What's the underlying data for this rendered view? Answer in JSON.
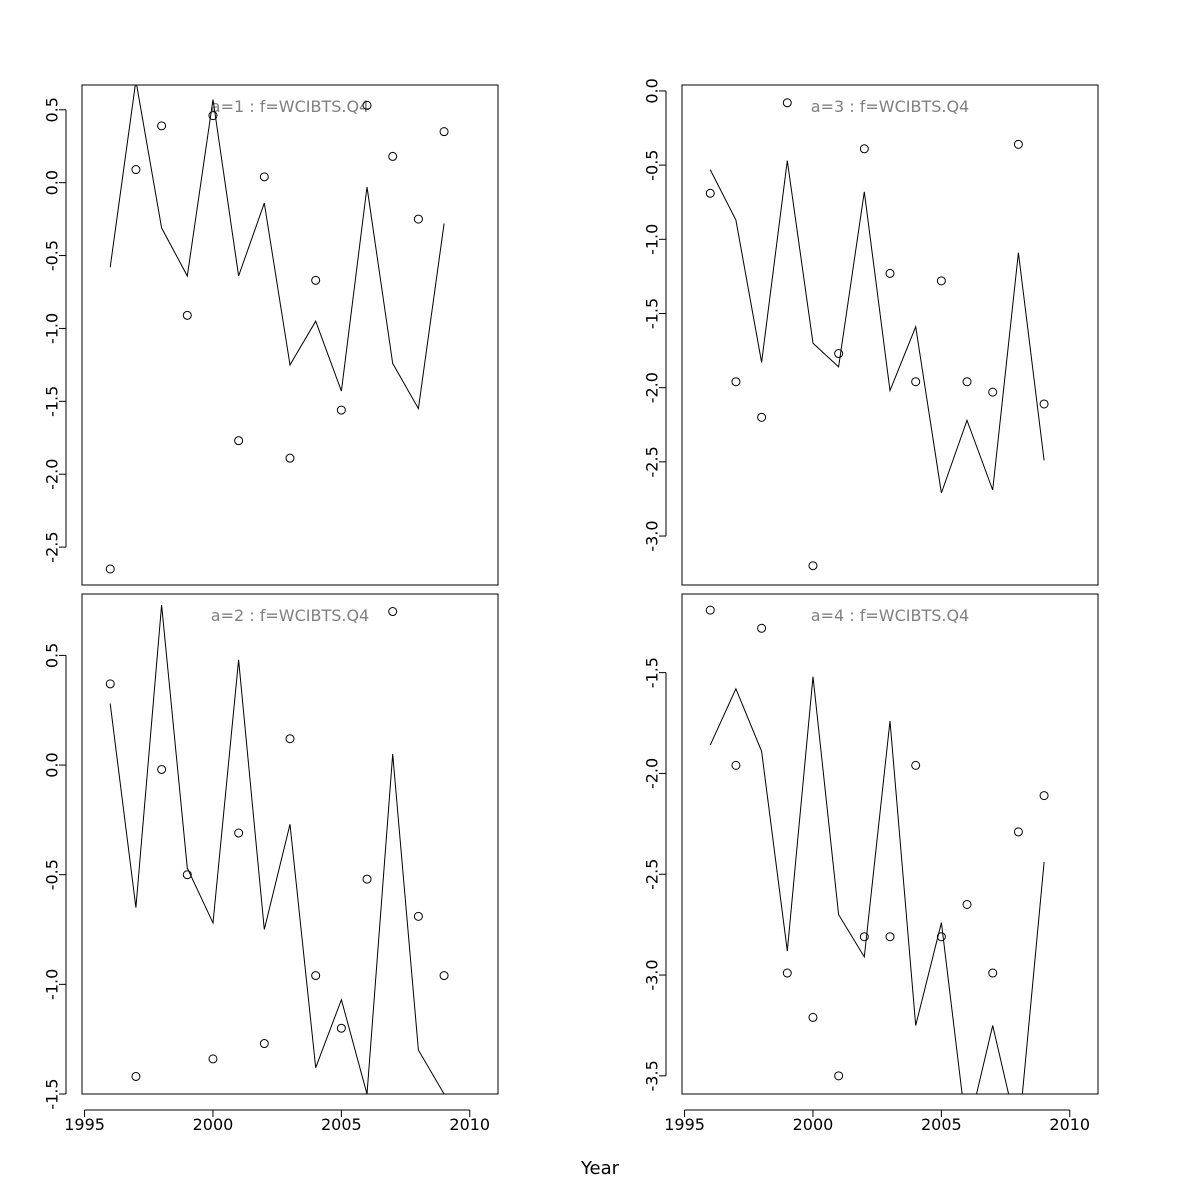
{
  "xlabel": "Year",
  "chart_data": [
    {
      "type": "line",
      "title": "a=1  :  f=WCIBTS.Q4",
      "x": [
        1996,
        1997,
        1998,
        1999,
        2000,
        2001,
        2002,
        2003,
        2004,
        2005,
        2006,
        2007,
        2008,
        2009
      ],
      "series": [
        {
          "kind": "line",
          "values": [
            -0.58,
            0.7,
            -0.31,
            -0.64,
            0.57,
            -0.64,
            -0.14,
            -1.25,
            -0.95,
            -1.43,
            -0.03,
            -1.24,
            -1.55,
            -0.28
          ]
        },
        {
          "kind": "points",
          "values": [
            -2.65,
            0.09,
            0.39,
            -0.91,
            0.46,
            -1.77,
            0.04,
            -1.89,
            -0.67,
            -1.56,
            0.53,
            0.18,
            -0.25,
            0.35
          ]
        }
      ],
      "xlim": [
        1994.9,
        2011.1
      ],
      "ylim": [
        -2.76,
        0.67
      ],
      "yticks": [
        -2.5,
        -2.0,
        -1.5,
        -1.0,
        -0.5,
        0.0,
        0.5
      ],
      "ytick_labels": [
        "-2.5",
        "-2.0",
        "-1.5",
        "-1.0",
        "-0.5",
        "0.0",
        "0.5"
      ]
    },
    {
      "type": "line",
      "title": "a=3  :  f=WCIBTS.Q4",
      "x": [
        1996,
        1997,
        1998,
        1999,
        2000,
        2001,
        2002,
        2003,
        2004,
        2005,
        2006,
        2007,
        2008,
        2009
      ],
      "series": [
        {
          "kind": "line",
          "values": [
            -0.53,
            -0.87,
            -1.83,
            -0.47,
            -1.7,
            -1.86,
            -0.68,
            -2.02,
            -1.59,
            -2.71,
            -2.22,
            -2.69,
            -1.09,
            -2.49
          ]
        },
        {
          "kind": "points",
          "values": [
            -0.69,
            -1.96,
            -2.2,
            -0.08,
            -3.2,
            -1.77,
            -0.39,
            -1.23,
            -1.96,
            -1.28,
            -1.96,
            -2.03,
            -0.36,
            -2.11
          ]
        }
      ],
      "xlim": [
        1994.9,
        2011.1
      ],
      "ylim": [
        -3.33,
        0.04
      ],
      "yticks": [
        -3.0,
        -2.5,
        -2.0,
        -1.5,
        -1.0,
        -0.5,
        0.0
      ],
      "ytick_labels": [
        "-3.0",
        "-2.5",
        "-2.0",
        "-1.5",
        "-1.0",
        "-0.5",
        "0.0"
      ]
    },
    {
      "type": "line",
      "title": "a=2  :  f=WCIBTS.Q4",
      "x": [
        1996,
        1997,
        1998,
        1999,
        2000,
        2001,
        2002,
        2003,
        2004,
        2005,
        2006,
        2007,
        2008,
        2009
      ],
      "series": [
        {
          "kind": "line",
          "values": [
            0.28,
            -0.65,
            0.73,
            -0.47,
            -0.72,
            0.48,
            -0.75,
            -0.27,
            -1.38,
            -1.07,
            -1.5,
            0.05,
            -1.3,
            -1.5
          ]
        },
        {
          "kind": "points",
          "values": [
            0.37,
            -1.42,
            -0.02,
            -0.5,
            -1.34,
            -0.31,
            -1.27,
            0.12,
            -0.96,
            -1.2,
            -0.52,
            0.7,
            -0.69,
            -0.96
          ]
        }
      ],
      "xlim": [
        1994.9,
        2011.1
      ],
      "ylim": [
        -1.5,
        0.78
      ],
      "yticks": [
        -1.5,
        -1.0,
        -0.5,
        0.0,
        0.5
      ],
      "ytick_labels": [
        "-1.5",
        "-1.0",
        "-0.5",
        "0.0",
        "0.5"
      ]
    },
    {
      "type": "line",
      "title": "a=4  :  f=WCIBTS.Q4",
      "x": [
        1996,
        1997,
        1998,
        1999,
        2000,
        2001,
        2002,
        2003,
        2004,
        2005,
        2006,
        2007,
        2008,
        2009
      ],
      "series": [
        {
          "kind": "line",
          "values": [
            -1.86,
            -1.58,
            -1.89,
            -2.88,
            -1.52,
            -2.7,
            -2.91,
            -1.74,
            -3.25,
            -2.74,
            -3.79,
            -3.25,
            -3.8,
            -2.44
          ]
        },
        {
          "kind": "points",
          "values": [
            -1.19,
            -1.96,
            -1.28,
            -2.99,
            -3.21,
            -3.5,
            -2.81,
            -2.81,
            -1.96,
            -2.81,
            -2.65,
            -2.99,
            -2.29,
            -2.11
          ]
        }
      ],
      "xlim": [
        1994.9,
        2011.1
      ],
      "ylim": [
        -3.59,
        -1.11
      ],
      "yticks": [
        -3.5,
        -3.0,
        -2.5,
        -2.0,
        -1.5
      ],
      "ytick_labels": [
        "-3.5",
        "-3.0",
        "-2.5",
        "-2.0",
        "-1.5"
      ]
    }
  ],
  "xticks": [
    1995,
    2000,
    2005,
    2010
  ],
  "xtick_labels": [
    "1995",
    "2000",
    "2005",
    "2010"
  ],
  "colors": {
    "line": "#000000",
    "points": "#000000",
    "title_text": "#808080",
    "frame": "#000000"
  }
}
